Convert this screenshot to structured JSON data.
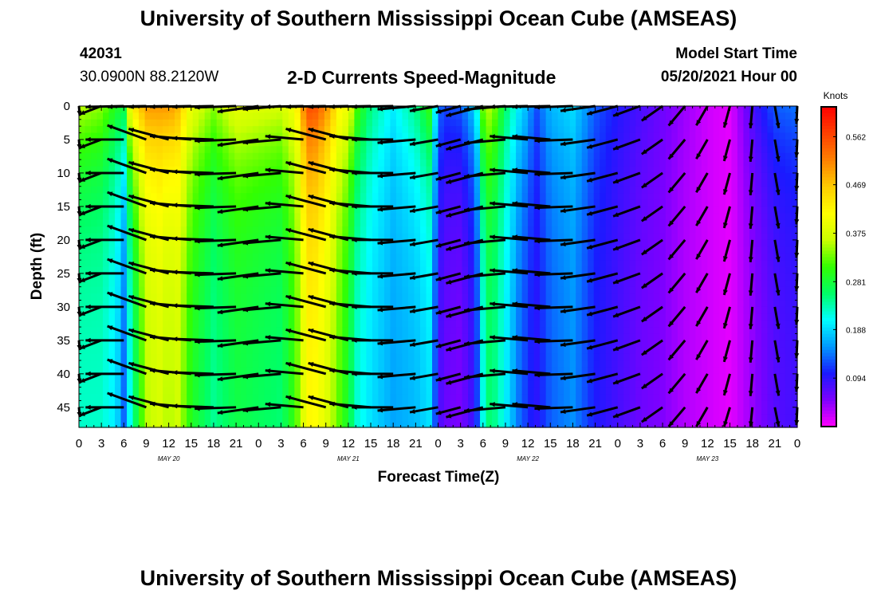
{
  "header": {
    "title": "University of Southern Mississippi Ocean Cube (AMSEAS)",
    "station_id": "42031",
    "coordinates": "30.0900N  88.2120W",
    "chart_title": "2-D Currents Speed-Magnitude",
    "model_start_label": "Model Start Time",
    "model_start_value": "05/20/2021 Hour 00"
  },
  "footer": {
    "title": "University of Southern Mississippi Ocean Cube (AMSEAS)"
  },
  "colors": {
    "scale": [
      "#ff00ff",
      "#7d00ff",
      "#1a1aff",
      "#0099ff",
      "#00ffff",
      "#00ff66",
      "#33ff00",
      "#ccff00",
      "#ffff00",
      "#ffcc00",
      "#ff8000",
      "#ff4000",
      "#ff0000"
    ],
    "arrow": "#000000",
    "axis": "#000000"
  },
  "chart_data": {
    "type": "heatmap",
    "title": "2-D Currents Speed-Magnitude",
    "xlabel": "Forecast Time(Z)",
    "ylabel": "Depth (ft)",
    "x_ticks": [
      "0",
      "3",
      "6",
      "9",
      "12",
      "15",
      "18",
      "21",
      "0",
      "3",
      "6",
      "9",
      "12",
      "15",
      "18",
      "21",
      "0",
      "3",
      "6",
      "9",
      "12",
      "15",
      "18",
      "21",
      "0",
      "3",
      "6",
      "9",
      "12",
      "15",
      "18",
      "21",
      "0"
    ],
    "date_labels": [
      {
        "hour": 12,
        "text": "MAY 20"
      },
      {
        "hour": 36,
        "text": "MAY 21"
      },
      {
        "hour": 60,
        "text": "MAY 22"
      },
      {
        "hour": 84,
        "text": "MAY 23"
      }
    ],
    "xlim": [
      0,
      96
    ],
    "y_ticks": [
      "0",
      "5",
      "10",
      "15",
      "20",
      "25",
      "30",
      "35",
      "40",
      "45"
    ],
    "ylim": [
      0,
      48
    ],
    "colorbar": {
      "label": "Knots",
      "ticks": [
        "0.562",
        "0.469",
        "0.375",
        "0.281",
        "0.188",
        "0.094"
      ],
      "tick_values": [
        0.562,
        0.469,
        0.375,
        0.281,
        0.188,
        0.094
      ],
      "range": [
        0.0,
        0.62
      ]
    },
    "speed_profile": {
      "hours": [
        0,
        3,
        5,
        6,
        7,
        9,
        11,
        12,
        13,
        15,
        18,
        21,
        24,
        27,
        29,
        30,
        31,
        33,
        35,
        36,
        37,
        39,
        42,
        45,
        47,
        48,
        49,
        51,
        53,
        54,
        55,
        57,
        59,
        60,
        61,
        63,
        66,
        69,
        72,
        75,
        78,
        81,
        84,
        87,
        90,
        93,
        96
      ],
      "deep_speed": [
        0.22,
        0.22,
        0.19,
        0.13,
        0.22,
        0.35,
        0.37,
        0.34,
        0.37,
        0.29,
        0.24,
        0.27,
        0.26,
        0.25,
        0.31,
        0.38,
        0.42,
        0.38,
        0.31,
        0.28,
        0.22,
        0.19,
        0.16,
        0.17,
        0.19,
        0.08,
        0.06,
        0.05,
        0.09,
        0.21,
        0.26,
        0.2,
        0.13,
        0.11,
        0.09,
        0.13,
        0.15,
        0.1,
        0.08,
        0.06,
        0.05,
        0.03,
        0.02,
        0.01,
        0.04,
        0.07,
        0.08
      ],
      "surface_boost": [
        0.14,
        0.12,
        0.1,
        0.15,
        0.2,
        0.15,
        0.13,
        0.16,
        0.12,
        0.1,
        0.1,
        0.12,
        0.12,
        0.12,
        0.1,
        0.13,
        0.15,
        0.13,
        0.1,
        0.12,
        0.1,
        0.06,
        0.04,
        0.08,
        0.12,
        0.06,
        0.06,
        0.08,
        0.1,
        0.12,
        0.1,
        0.06,
        0.06,
        0.06,
        0.03,
        0.04,
        0.04,
        0.03,
        0.02,
        0.02,
        0.01,
        0.01,
        0.0,
        0.0,
        0.04,
        0.06,
        0.06
      ]
    },
    "vectors": {
      "depths": [
        0,
        5,
        10,
        15,
        20,
        25,
        30,
        35,
        40,
        45
      ],
      "hours": [
        0,
        3,
        6,
        9,
        12,
        15,
        18,
        21,
        24,
        27,
        30,
        33,
        36,
        39,
        42,
        45,
        48,
        51,
        54,
        57,
        60,
        63,
        66,
        69,
        72,
        75,
        78,
        81,
        84,
        87,
        90,
        93,
        96
      ],
      "direction_deg": [
        200,
        195,
        180,
        160,
        165,
        175,
        178,
        182,
        188,
        185,
        175,
        165,
        165,
        175,
        180,
        185,
        190,
        195,
        195,
        185,
        175,
        175,
        182,
        188,
        195,
        200,
        215,
        230,
        240,
        255,
        265,
        280,
        290
      ],
      "magnitude": [
        0.45,
        0.5,
        0.6,
        0.65,
        0.65,
        0.65,
        0.65,
        0.65,
        0.65,
        0.6,
        0.6,
        0.65,
        0.65,
        0.65,
        0.65,
        0.6,
        0.45,
        0.4,
        0.6,
        0.65,
        0.6,
        0.6,
        0.6,
        0.55,
        0.5,
        0.45,
        0.4,
        0.4,
        0.35,
        0.35,
        0.35,
        0.35,
        0.3
      ]
    }
  }
}
